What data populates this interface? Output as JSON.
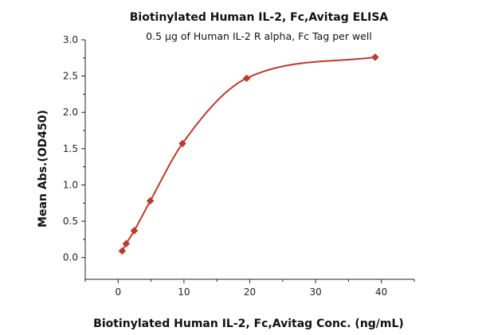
{
  "chart_data": {
    "type": "scatter",
    "title": "Biotinylated Human IL-2, Fc,Avitag ELISA",
    "subtitle": "0.5 μg of Human IL-2 R alpha, Fc Tag per well",
    "xlabel": "Biotinylated Human IL-2, Fc,Avitag Conc. (ng/mL)",
    "ylabel": "Mean Abs.(OD450)",
    "xlim": [
      -5,
      45
    ],
    "ylim": [
      -0.3,
      3.0
    ],
    "x_ticks": [
      "0",
      "10",
      "20",
      "30",
      "40"
    ],
    "y_ticks": [
      "0.0",
      "0.5",
      "1.0",
      "1.5",
      "2.0",
      "2.5",
      "3.0"
    ],
    "grid": false,
    "marker": "diamond",
    "fit": "sigmoidal curve",
    "series": [
      {
        "x": [
          0.61,
          1.22,
          2.44,
          4.88,
          9.77,
          19.53,
          39.06
        ],
        "y": [
          0.09,
          0.19,
          0.37,
          0.78,
          1.57,
          2.47,
          2.76
        ],
        "color": "#c0392b"
      }
    ]
  }
}
